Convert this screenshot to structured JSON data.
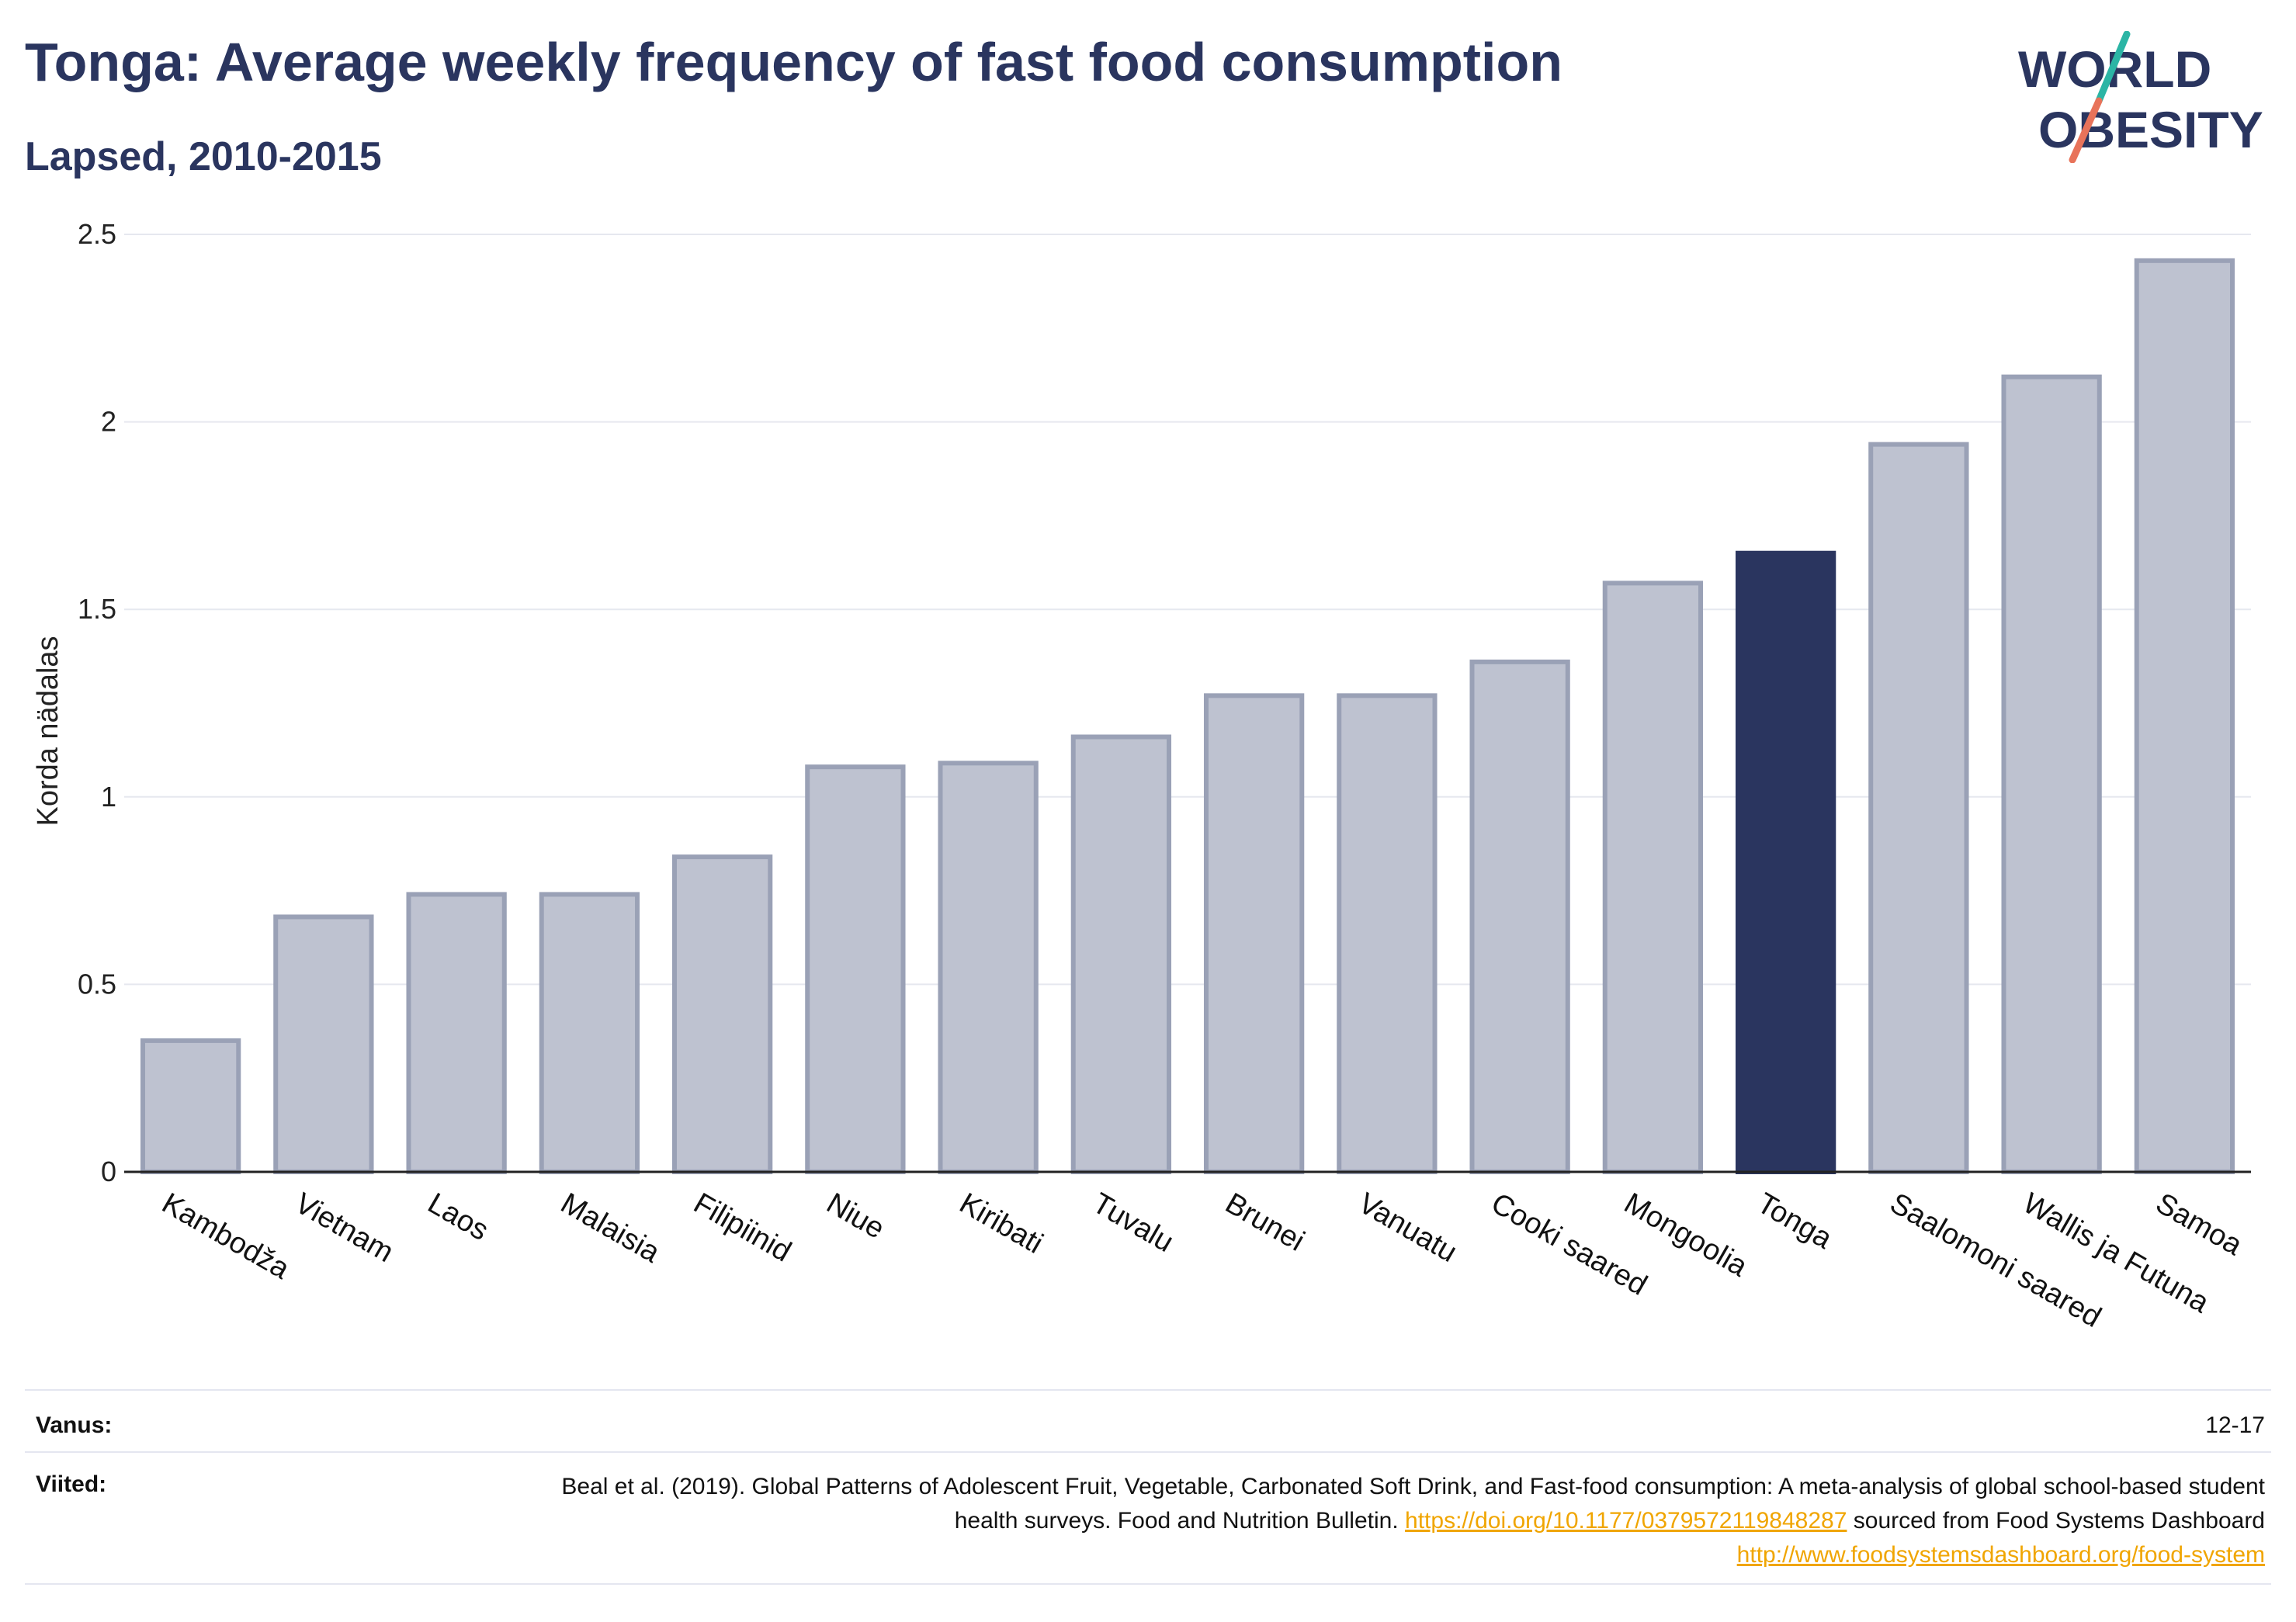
{
  "header": {
    "title": "Tonga: Average weekly frequency of fast food consumption",
    "subtitle": "Lapsed, 2010-2015"
  },
  "logo": {
    "line1": "WORLD",
    "line2": "OBESITY",
    "colors": {
      "text": "#2a355f",
      "slash_top": "#2bb5a5",
      "slash_bottom": "#e8735a"
    }
  },
  "chart_data": {
    "type": "bar",
    "ylabel": "Korda nädalas",
    "ylim": [
      0,
      2.5
    ],
    "yticks": [
      0,
      0.5,
      1,
      1.5,
      2,
      2.5
    ],
    "ytick_labels": [
      "0",
      "0.5",
      "1",
      "1.5",
      "2",
      "2.5"
    ],
    "grid": true,
    "categories": [
      "Kambodža",
      "Vietnam",
      "Laos",
      "Malaisia",
      "Filipiinid",
      "Niue",
      "Kiribati",
      "Tuvalu",
      "Brunei",
      "Vanuatu",
      "Cooki saared",
      "Mongoolia",
      "Tonga",
      "Saalomoni saared",
      "Wallis ja Futuna",
      "Samoa"
    ],
    "values": [
      0.35,
      0.68,
      0.74,
      0.74,
      0.84,
      1.08,
      1.09,
      1.16,
      1.27,
      1.27,
      1.36,
      1.57,
      1.65,
      1.94,
      2.12,
      2.43
    ],
    "highlight": "Tonga",
    "colors": {
      "bar": "#bec2d0",
      "bar_border": "#9aa1b6",
      "highlight": "#2a355f",
      "grid": "#e6e8ef",
      "axis": "#222222"
    }
  },
  "footer": {
    "age_label": "Vanus:",
    "age_value": "12-17",
    "refs_label": "Viited:",
    "refs_text_1": "Beal et al. (2019). Global Patterns of Adolescent Fruit, Vegetable, Carbonated Soft Drink, and Fast-food consumption: A meta-analysis of global school-based student health surveys. Food and Nutrition Bulletin.",
    "refs_link_1": "https://doi.org/10.1177/0379572119848287",
    "refs_text_2": "sourced from Food Systems Dashboard",
    "refs_link_2": "http://www.foodsystemsdashboard.org/food-system"
  }
}
